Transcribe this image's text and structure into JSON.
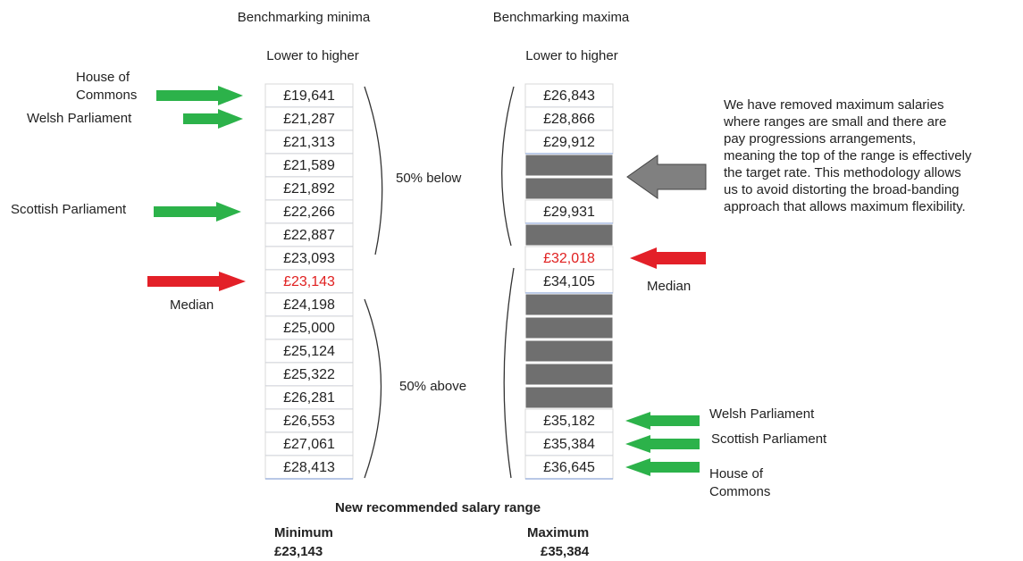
{
  "minima": {
    "title": "Benchmarking minima",
    "order": "Lower to higher",
    "values": [
      "£19,641",
      "£21,287",
      "£21,313",
      "£21,589",
      "£21,892",
      "£22,266",
      "£22,887",
      "£23,093",
      "£23,143",
      "£24,198",
      "£25,000",
      "£25,124",
      "£25,322",
      "£26,281",
      "£26,553",
      "£27,061",
      "£28,413"
    ],
    "below": "50% below",
    "above": "50% above",
    "median": "Median",
    "arrows": [
      "House of\nCommons",
      "Welsh Parliament",
      "Scottish Parliament"
    ]
  },
  "maxima": {
    "title": "Benchmarking maxima",
    "order": "Lower to higher",
    "values": [
      "£26,843",
      "£28,866",
      "£29,912",
      null,
      null,
      "£29,931",
      null,
      "£32,018",
      "£34,105",
      null,
      null,
      null,
      null,
      null,
      "£35,182",
      "£35,384",
      "£36,645"
    ],
    "median": "Median",
    "arrows": [
      "Welsh Parliament",
      "Scottish Parliament",
      "House of\nCommons"
    ]
  },
  "note": [
    "We have removed maximum salaries",
    "where ranges are small and there are",
    "pay progressions arrangements,",
    "meaning the top of the range is effectively",
    "the target rate. This methodology allows",
    "us to avoid distorting the broad-banding",
    "approach that allows maximum flexibility."
  ],
  "summary": {
    "title": "New recommended salary range",
    "minimum_label": "Minimum",
    "minimum": "£23,143",
    "maximum_label": "Maximum",
    "maximum": "£35,384"
  }
}
